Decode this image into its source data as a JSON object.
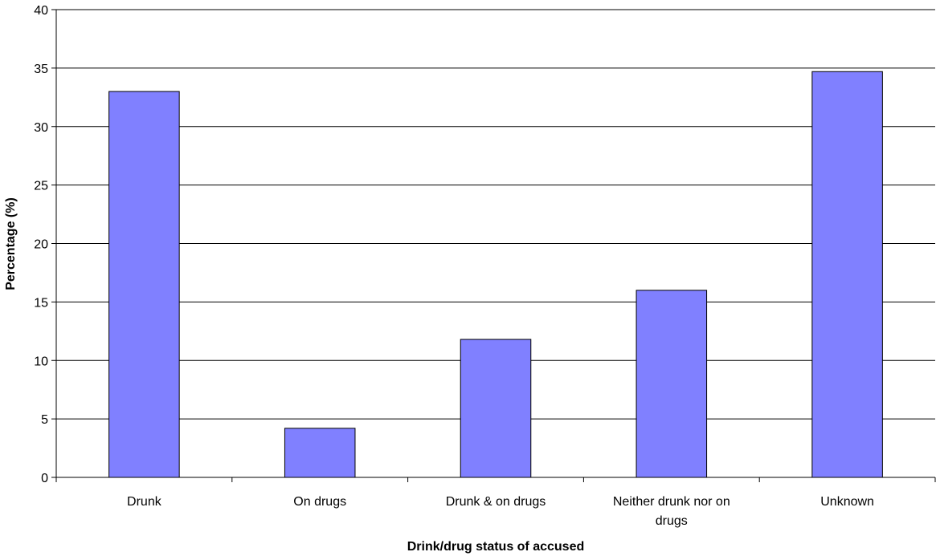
{
  "chart_data": {
    "type": "bar",
    "categories": [
      "Drunk",
      "On drugs",
      "Drunk & on drugs",
      "Neither drunk nor on drugs",
      "Unknown"
    ],
    "category_label_lines": [
      [
        "Drunk"
      ],
      [
        "On drugs"
      ],
      [
        "Drunk & on drugs"
      ],
      [
        "Neither drunk nor on",
        "drugs"
      ],
      [
        "Unknown"
      ]
    ],
    "values": [
      33.0,
      4.2,
      11.8,
      16.0,
      34.7
    ],
    "xlabel": "Drink/drug status of accused",
    "ylabel": "Percentage (%)",
    "ylim": [
      0,
      40
    ],
    "yticks": [
      "0",
      "5",
      "10",
      "15",
      "20",
      "25",
      "30",
      "35",
      "40"
    ],
    "grid": true,
    "legend": false,
    "colors": {
      "bar_fill": "#8080FF",
      "bar_stroke": "#000000",
      "grid": "#000000",
      "background": "#FFFFFF"
    }
  }
}
